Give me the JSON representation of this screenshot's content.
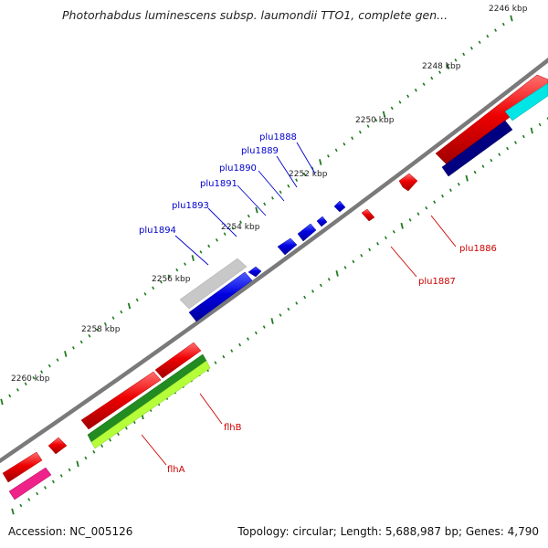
{
  "title": "Photorhabdus luminescens subsp. laumondii TTO1, complete gen...",
  "footer": {
    "accession": "Accession: NC_005126",
    "topology": "Topology: circular; Length: 5,688,987 bp; Genes: 4,790"
  },
  "scale_labels": [
    "2246 kbp",
    "2248 kbp",
    "2250 kbp",
    "2252 kbp",
    "2254 kbp",
    "2256 kbp",
    "2258 kbp",
    "2260 kbp"
  ],
  "gene_labels": {
    "blue": [
      "plu1888",
      "plu1889",
      "plu1890",
      "plu1891",
      "plu1893",
      "plu1894"
    ],
    "red": [
      "plu1886",
      "plu1887",
      "flhB",
      "flhA"
    ]
  },
  "colors": {
    "backbone": "#7a7a7a",
    "tick": "#1f7a1f",
    "red": "#ee0000",
    "blue": "#0000dd",
    "navy": "#000080",
    "cyan": "#00e5e5",
    "gray": "#c8c8c8",
    "green_dark": "#228b22",
    "green_light": "#b5ff3a",
    "magenta": "#ee2288",
    "blue_label": "#0000cc",
    "red_label": "#cc0000"
  }
}
